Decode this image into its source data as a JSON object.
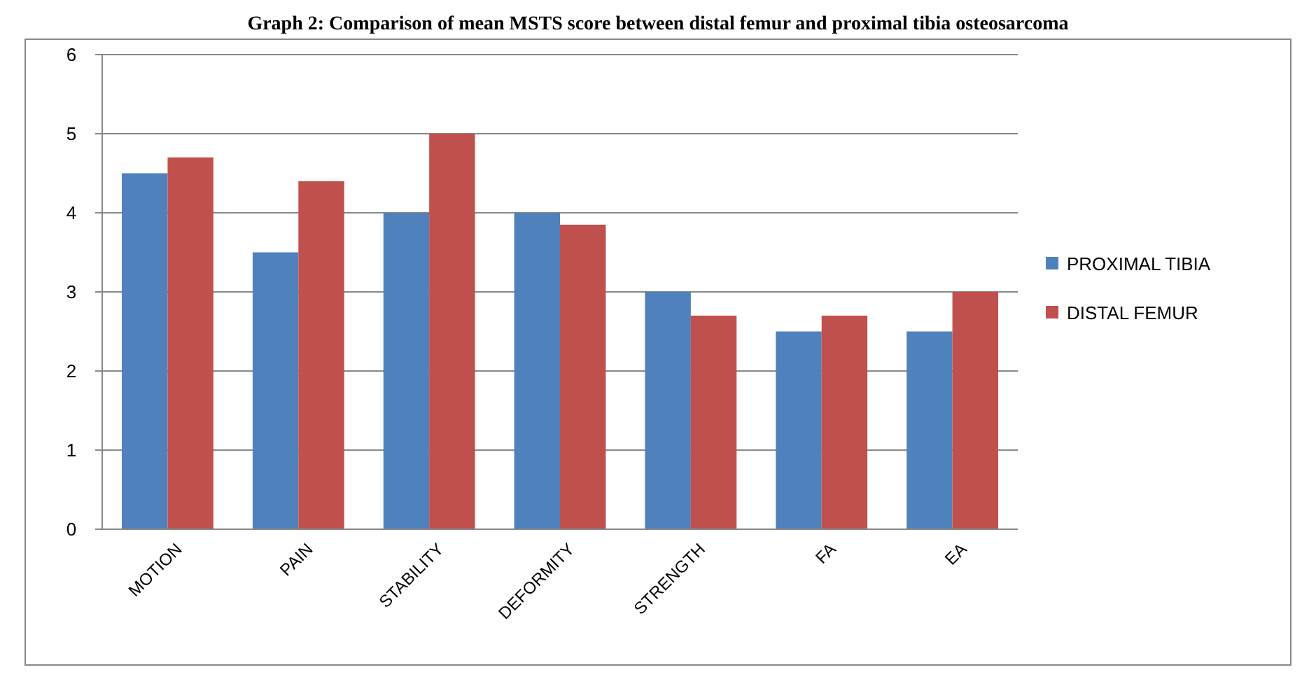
{
  "chart_data": {
    "type": "bar",
    "title": "Graph 2: Comparison of mean MSTS score between distal femur and proximal tibia osteosarcoma",
    "categories": [
      "MOTION",
      "PAIN",
      "STABILITY",
      "DEFORMITY",
      "STRENGTH",
      "FA",
      "EA"
    ],
    "series": [
      {
        "name": "PROXIMAL TIBIA",
        "color": "#4f81bd",
        "values": [
          4.5,
          3.5,
          4,
          4,
          3,
          2.5,
          2.5
        ]
      },
      {
        "name": "DISTAL FEMUR",
        "color": "#c0504d",
        "values": [
          4.7,
          4.4,
          5,
          3.85,
          2.7,
          2.7,
          3
        ]
      }
    ],
    "ylim": [
      0,
      6
    ],
    "yticks": [
      0,
      1,
      2,
      3,
      4,
      5,
      6
    ],
    "grid": "y",
    "legend": "right"
  }
}
